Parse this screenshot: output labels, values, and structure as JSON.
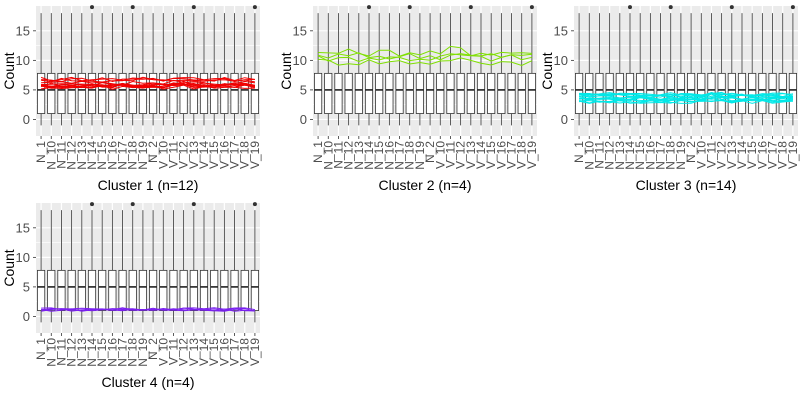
{
  "chart_data": [
    {
      "type": "boxplot-with-lines",
      "title": "Cluster 1 (n=12)",
      "ylabel": "Count",
      "line_color": "#f00000",
      "line_level": 6.2,
      "line_spread": 0.8,
      "n_lines": 12
    },
    {
      "type": "boxplot-with-lines",
      "title": "Cluster 2 (n=4)",
      "ylabel": "Count",
      "line_color": "#7fe000",
      "line_level": 10.8,
      "line_spread": 1.4,
      "n_lines": 4
    },
    {
      "type": "boxplot-with-lines",
      "title": "Cluster 3 (n=14)",
      "ylabel": "Count",
      "line_color": "#00e8e8",
      "line_level": 3.6,
      "line_spread": 0.7,
      "n_lines": 14
    },
    {
      "type": "boxplot-with-lines",
      "title": "Cluster 4 (n=4)",
      "ylabel": "Count",
      "line_color": "#7a1ff0",
      "line_level": 1.0,
      "line_spread": 0.5,
      "n_lines": 4
    }
  ],
  "shared": {
    "x_tick_labels": [
      "N_1",
      "N_10",
      "N_11",
      "N_12",
      "N_13",
      "N_14",
      "N_15",
      "N_16",
      "N_17",
      "N_18",
      "N_19",
      "N_2",
      "V_10",
      "V_11",
      "V_12",
      "V_13",
      "V_14",
      "V_15",
      "V_16",
      "V_17",
      "V_18",
      "V_19"
    ],
    "y_ticks": [
      0,
      5,
      10,
      15
    ],
    "ylim": [
      -2.8,
      19.2
    ],
    "box_median": 5,
    "box_q1": 1,
    "box_q3": 7.8,
    "box_whisker_low": -1,
    "box_whisker_high": 18,
    "outlier_value": 19,
    "outlier_categories": [
      5,
      9,
      15,
      21
    ],
    "panel_background": "#ebebeb",
    "grid_color": "#ffffff"
  }
}
